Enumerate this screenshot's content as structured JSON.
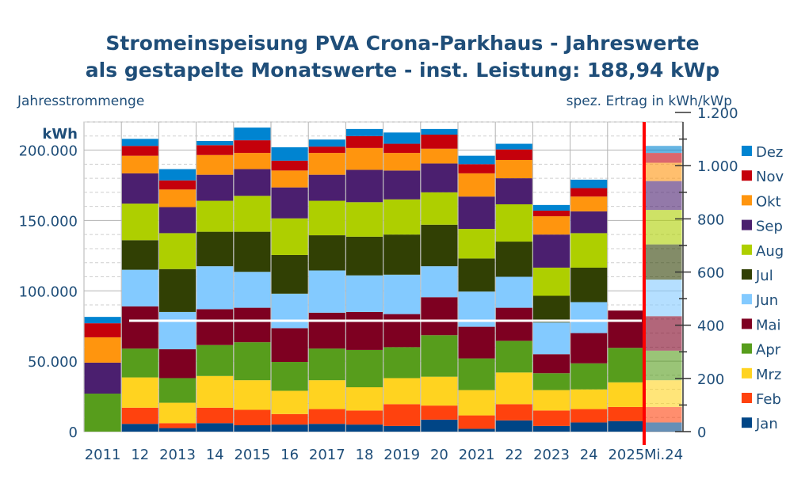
{
  "title_line1": "Stromeinspeisung PVA Crona-Parkhaus - Jahreswerte",
  "title_line2": "als gestapelte Monatswerte - inst. Leistung: 188,94 kWp",
  "left_header": "Jahresstrommenge",
  "right_header": "spez. Ertrag in kWh/kWp",
  "colors": {
    "Jan": "#004586",
    "Feb": "#ff420e",
    "Mrz": "#ffd320",
    "Apr": "#579d1c",
    "Mai": "#7e0021",
    "Jun": "#83caff",
    "Jul": "#314004",
    "Aug": "#aecf00",
    "Sep": "#4b1f6f",
    "Okt": "#ff950e",
    "Nov": "#c5000b",
    "Dez": "#0084d1"
  },
  "chart_data": {
    "type": "bar",
    "stacked": true,
    "categories": [
      "2011",
      "12",
      "2013",
      "14",
      "2015",
      "16",
      "2017",
      "18",
      "2019",
      "20",
      "2021",
      "22",
      "2023",
      "24",
      "2025",
      "Mi.24"
    ],
    "ylabel": "kWh",
    "ylim": [
      0,
      220000
    ],
    "yticks": [
      0,
      50000,
      100000,
      150000,
      200000
    ],
    "ytick_labels": [
      "0",
      "50.000",
      "100.000",
      "150.000",
      "200.000"
    ],
    "y2lim": [
      0,
      1164.4
    ],
    "y2ticks": [
      0,
      200,
      400,
      600,
      800,
      1000,
      1200
    ],
    "y2tick_labels": [
      "0",
      "200",
      "400",
      "600",
      "800",
      "1.000",
      "1.200"
    ],
    "grid": true,
    "legend_position": "right",
    "legend_order": [
      "Dez",
      "Nov",
      "Okt",
      "Sep",
      "Aug",
      "Jul",
      "Jun",
      "Mai",
      "Apr",
      "Mrz",
      "Feb",
      "Jan"
    ],
    "series": [
      {
        "name": "Jan",
        "values": [
          0,
          5500,
          2500,
          6000,
          4500,
          5000,
          5500,
          5000,
          4000,
          8500,
          2000,
          8000,
          4000,
          6500,
          7500,
          6500
        ]
      },
      {
        "name": "Feb",
        "values": [
          0,
          11500,
          3500,
          11000,
          11000,
          7500,
          10500,
          10000,
          15500,
          10000,
          9500,
          11500,
          11000,
          9500,
          10000,
          11000
        ]
      },
      {
        "name": "Mrz",
        "values": [
          0,
          21500,
          14500,
          22500,
          21000,
          16500,
          20500,
          16500,
          18500,
          20500,
          18000,
          22500,
          14500,
          14000,
          17500,
          19000
        ]
      },
      {
        "name": "Apr",
        "values": [
          27000,
          20500,
          17500,
          22000,
          27000,
          20500,
          22500,
          26500,
          22000,
          29500,
          22500,
          22500,
          12000,
          18500,
          24500,
          21000
        ]
      },
      {
        "name": "Mai",
        "values": [
          0,
          30000,
          20500,
          25500,
          24500,
          24000,
          25500,
          27000,
          23500,
          27000,
          22500,
          23500,
          13500,
          21500,
          26500,
          24500
        ]
      },
      {
        "name": "Jun",
        "values": [
          0,
          26000,
          26500,
          30500,
          25500,
          24500,
          30000,
          26000,
          28000,
          22000,
          25000,
          22000,
          22500,
          22000,
          0,
          26000
        ]
      },
      {
        "name": "Jul",
        "values": [
          0,
          21000,
          30500,
          24500,
          28500,
          27500,
          25000,
          27500,
          28500,
          29500,
          23500,
          25000,
          19000,
          24500,
          0,
          25000
        ]
      },
      {
        "name": "Aug",
        "values": [
          0,
          26000,
          25500,
          22000,
          25500,
          26000,
          24500,
          24500,
          25000,
          23000,
          21000,
          26500,
          20000,
          24500,
          0,
          24500
        ]
      },
      {
        "name": "Sep",
        "values": [
          22000,
          21500,
          18500,
          18500,
          19000,
          22000,
          18500,
          23000,
          20500,
          20500,
          23000,
          18500,
          23500,
          15500,
          0,
          20500
        ]
      },
      {
        "name": "Okt",
        "values": [
          18000,
          12500,
          12500,
          14000,
          11500,
          12000,
          15500,
          15500,
          12500,
          10500,
          16500,
          13000,
          13000,
          10500,
          0,
          13000
        ]
      },
      {
        "name": "Nov",
        "values": [
          10000,
          7000,
          6500,
          7000,
          9000,
          7000,
          4500,
          8500,
          6500,
          10000,
          6500,
          7500,
          4000,
          6000,
          0,
          7000
        ]
      },
      {
        "name": "Dez",
        "values": [
          4500,
          5000,
          8000,
          3000,
          9000,
          9500,
          5000,
          5000,
          8000,
          4000,
          6000,
          4000,
          4000,
          6000,
          0,
          5000
        ]
      }
    ]
  }
}
